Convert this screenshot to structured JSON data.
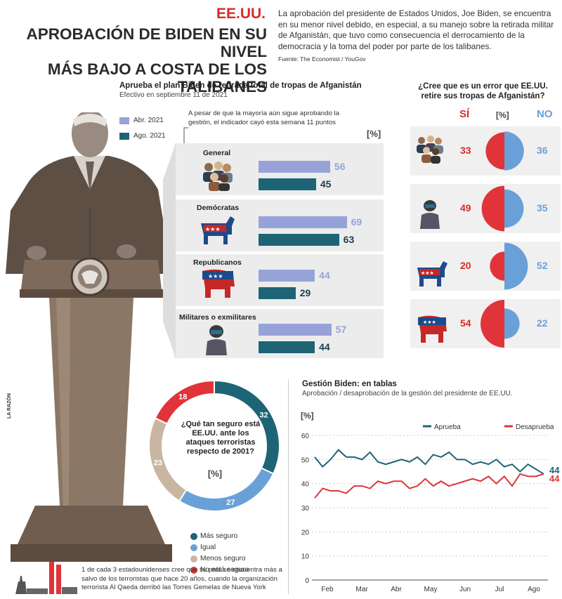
{
  "header": {
    "country": "EE.UU.",
    "title_line1": "APROBACIÓN DE BIDEN EN SU NIVEL",
    "title_line2": "MÁS BAJO A COSTA DE LOS TALIBANES",
    "intro": "La aprobación del presidente de Estados Unidos, Joe Biden, se encuentra en su menor nivel debido, en especial, a su manejo sobre la retirada militar de Afganistán, que tuvo como consecuencia el derrocamiento de la democracia y la toma del poder por parte de los talibanes.",
    "source": "Fuente: The Economist / YouGov"
  },
  "side_logo": "LA RAZÓN",
  "footer_note": "1 de cada 3 estadounidenses cree que su país se encuentra más a salvo de los terroristas que hace 20 años, cuando la organización terrorista Al Qaeda derribó las Torres Gemelas de Nueva York",
  "colors": {
    "light_blue": "#97a3d8",
    "dark_teal": "#1d6476",
    "red": "#e0343a",
    "sky": "#6aa0d8",
    "tan": "#c9b6a2"
  },
  "chart_data": [
    {
      "id": "approval_bars",
      "type": "bar",
      "title": "Aprueba el plan Biden de retirada total de tropas de Afganistán",
      "subtitle": "Efectivo en septiembre 11 de 2021",
      "unit": "[%]",
      "note": "A pesar de que la mayoría aún sigue aprobando la gestión, el indicador cayó esta semana 11 puntos",
      "categories": [
        "General",
        "Demócratas",
        "Republicanos",
        "Militares o exmilitares"
      ],
      "series": [
        {
          "name": "Abr. 2021",
          "values": [
            56,
            69,
            44,
            57
          ]
        },
        {
          "name": "Ago. 2021",
          "values": [
            45,
            63,
            29,
            44
          ]
        }
      ]
    },
    {
      "id": "error_question",
      "type": "pie",
      "title": "¿Cree que es un error que EE.UU. retire sus tropas de Afganistán?",
      "unit": "[%]",
      "yes_label": "SÍ",
      "no_label": "NO",
      "groups": [
        "General",
        "Militares o exmilitares",
        "Demócratas",
        "Republicanos"
      ],
      "yes": [
        33,
        49,
        20,
        54
      ],
      "no": [
        36,
        35,
        52,
        22
      ]
    },
    {
      "id": "security_donut",
      "type": "pie",
      "title": "¿Qué tan seguro está EE.UU. ante los ataques terroristas respecto de 2001?",
      "unit": "[%]",
      "labels": [
        "Más seguro",
        "Igual",
        "Menos seguro",
        "No está seguro"
      ],
      "values": [
        32,
        27,
        23,
        18
      ]
    },
    {
      "id": "gestion_line",
      "type": "line",
      "title": "Gestión Biden: en tablas",
      "subtitle": "Aprobación / desaprobación de la gestión del presidente de EE.UU.",
      "ylabel": "[%]",
      "ylim": [
        0,
        60
      ],
      "yticks": [
        0,
        10,
        20,
        30,
        40,
        50,
        60
      ],
      "xticks": [
        "Feb",
        "Mar",
        "Abr",
        "May",
        "Jun",
        "Jul",
        "Ago"
      ],
      "series": [
        {
          "name": "Aprueba",
          "values": [
            51,
            47,
            50,
            54,
            51,
            51,
            50,
            53,
            49,
            48,
            49,
            50,
            49,
            51,
            48,
            52,
            51,
            53,
            50,
            50,
            48,
            49,
            48,
            50,
            47,
            48,
            45,
            48,
            46,
            44
          ],
          "end_label": "44"
        },
        {
          "name": "Desaprueba",
          "values": [
            34,
            38,
            37,
            37,
            36,
            39,
            39,
            38,
            41,
            40,
            41,
            41,
            38,
            39,
            42,
            39,
            41,
            39,
            40,
            41,
            42,
            41,
            43,
            40,
            43,
            39,
            44,
            43,
            43,
            44
          ],
          "end_label": "44"
        }
      ]
    }
  ]
}
